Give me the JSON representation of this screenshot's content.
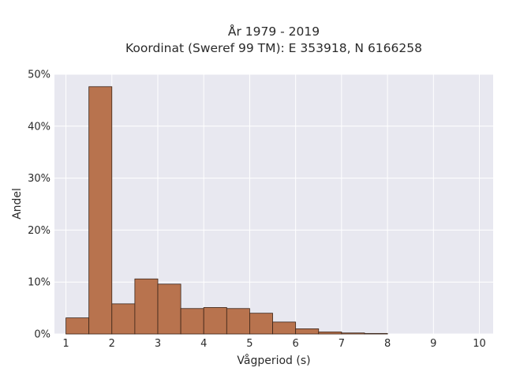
{
  "chart_data": {
    "type": "bar",
    "title_lines": [
      "År 1979 - 2019",
      "Koordinat (Sweref 99 TM): E 353918, N 6166258"
    ],
    "xlabel": "Vågperiod (s)",
    "ylabel": "Andel",
    "xlim": [
      0.75,
      10.3
    ],
    "ylim": [
      0,
      50
    ],
    "x_ticks": [
      "1",
      "2",
      "3",
      "4",
      "5",
      "6",
      "7",
      "8",
      "9",
      "10"
    ],
    "y_ticks": [
      "0%",
      "10%",
      "20%",
      "30%",
      "40%",
      "50%"
    ],
    "bin_width": 0.5,
    "bin_starts": [
      1.0,
      1.5,
      2.0,
      2.5,
      3.0,
      3.5,
      4.0,
      4.5,
      5.0,
      5.5,
      6.0,
      6.5,
      7.0,
      7.5
    ],
    "values": [
      3.1,
      47.6,
      5.8,
      10.6,
      9.6,
      4.9,
      5.1,
      4.9,
      4.0,
      2.3,
      1.0,
      0.4,
      0.2,
      0.1
    ],
    "grid": true,
    "colors": {
      "bar": "#b8734e",
      "bar_edge": "#3a2418",
      "plot_bg": "#e8e8f0",
      "grid": "#ffffff"
    }
  }
}
